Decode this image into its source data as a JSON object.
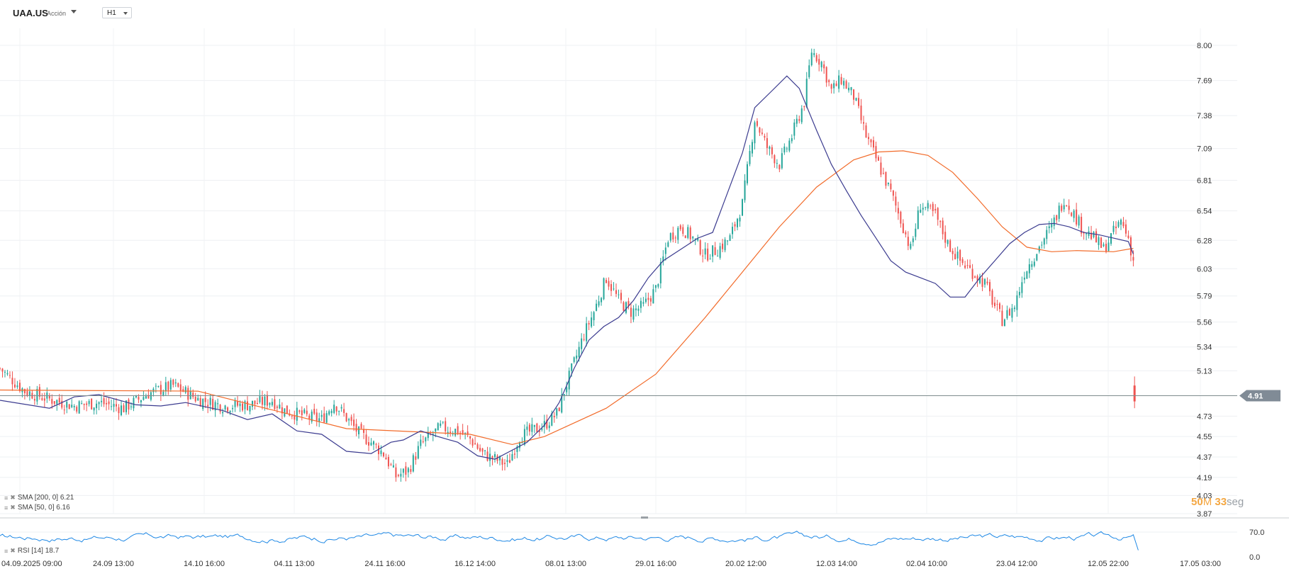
{
  "header": {
    "symbol": "UAA.US",
    "asset_type": "Acción",
    "timeframe": "H1"
  },
  "indicators": [
    {
      "label": "SMA [200, 0] 6.21",
      "color": "#f26b2a"
    },
    {
      "label": "SMA [50, 0] 6.16",
      "color": "#3b3b8f"
    }
  ],
  "rsi": {
    "label": "RSI [14] 18.7",
    "color": "#1e88e5",
    "ticks": [
      "70.0",
      "0.0"
    ]
  },
  "countdown": {
    "minutes": "50",
    "minutes_unit": "M",
    "seconds": "33",
    "seconds_unit": "seg"
  },
  "colors": {
    "up": "#26a69a",
    "down": "#ef5350",
    "sma200": "#f26b2a",
    "sma50": "#3b3b8f",
    "rsi": "#1e88e5",
    "price_line": "#90a4ae"
  },
  "chart_data": {
    "type": "candlestick",
    "symbol": "UAA.US",
    "timeframe": "H1",
    "ylim": [
      3.87,
      8.15
    ],
    "y_ticks": [
      "8.00",
      "7.69",
      "7.38",
      "7.09",
      "6.81",
      "6.54",
      "6.28",
      "6.03",
      "5.79",
      "5.56",
      "5.34",
      "5.13",
      "4.73",
      "4.55",
      "4.37",
      "4.19",
      "4.03",
      "3.87"
    ],
    "x_ticks": [
      "04.09.2025 09:00",
      "24.09 13:00",
      "14.10 16:00",
      "04.11 13:00",
      "24.11 16:00",
      "16.12 14:00",
      "08.01 13:00",
      "29.01 16:00",
      "20.02 12:00",
      "12.03 14:00",
      "02.04 10:00",
      "23.04 12:00",
      "12.05 22:00",
      "17.05 03:00"
    ],
    "current_price": "4.91",
    "close_path": [
      [
        0,
        5.15
      ],
      [
        10,
        4.95
      ],
      [
        20,
        4.88
      ],
      [
        30,
        4.82
      ],
      [
        40,
        4.85
      ],
      [
        50,
        4.8
      ],
      [
        60,
        4.93
      ],
      [
        70,
        5.0
      ],
      [
        80,
        4.88
      ],
      [
        90,
        4.82
      ],
      [
        100,
        4.83
      ],
      [
        110,
        4.87
      ],
      [
        115,
        4.78
      ],
      [
        125,
        4.72
      ],
      [
        130,
        4.7
      ],
      [
        135,
        4.85
      ],
      [
        145,
        4.58
      ],
      [
        150,
        4.5
      ],
      [
        155,
        4.4
      ],
      [
        160,
        4.2
      ],
      [
        165,
        4.25
      ],
      [
        170,
        4.48
      ],
      [
        178,
        4.63
      ],
      [
        185,
        4.6
      ],
      [
        190,
        4.53
      ],
      [
        195,
        4.4
      ],
      [
        200,
        4.35
      ],
      [
        205,
        4.3
      ],
      [
        210,
        4.55
      ],
      [
        215,
        4.6
      ],
      [
        220,
        4.65
      ],
      [
        225,
        4.75
      ],
      [
        228,
        4.95
      ],
      [
        232,
        5.2
      ],
      [
        236,
        5.45
      ],
      [
        240,
        5.65
      ],
      [
        245,
        5.95
      ],
      [
        250,
        5.75
      ],
      [
        255,
        5.65
      ],
      [
        260,
        5.7
      ],
      [
        265,
        5.85
      ],
      [
        270,
        6.3
      ],
      [
        275,
        6.4
      ],
      [
        280,
        6.3
      ],
      [
        285,
        6.15
      ],
      [
        290,
        6.2
      ],
      [
        295,
        6.3
      ],
      [
        300,
        6.6
      ],
      [
        305,
        7.35
      ],
      [
        310,
        7.1
      ],
      [
        315,
        6.95
      ],
      [
        320,
        7.2
      ],
      [
        325,
        7.5
      ],
      [
        328,
        7.95
      ],
      [
        332,
        7.85
      ],
      [
        336,
        7.6
      ],
      [
        340,
        7.7
      ],
      [
        345,
        7.55
      ],
      [
        350,
        7.2
      ],
      [
        355,
        6.95
      ],
      [
        360,
        6.7
      ],
      [
        365,
        6.4
      ],
      [
        368,
        6.2
      ],
      [
        372,
        6.6
      ],
      [
        378,
        6.5
      ],
      [
        383,
        6.25
      ],
      [
        388,
        6.1
      ],
      [
        393,
        6.0
      ],
      [
        398,
        5.9
      ],
      [
        402,
        5.7
      ],
      [
        405,
        5.58
      ],
      [
        410,
        5.7
      ],
      [
        414,
        6.0
      ],
      [
        418,
        6.15
      ],
      [
        422,
        6.3
      ],
      [
        425,
        6.4
      ],
      [
        430,
        6.65
      ],
      [
        433,
        6.55
      ],
      [
        437,
        6.4
      ],
      [
        442,
        6.3
      ],
      [
        446,
        6.2
      ],
      [
        450,
        6.35
      ],
      [
        453,
        6.45
      ],
      [
        456,
        6.3
      ],
      [
        458,
        6.1
      ],
      [
        458.5,
        4.91
      ]
    ],
    "series": [
      {
        "name": "SMA [200, 0]",
        "last": 6.21,
        "path": [
          [
            0,
            4.96
          ],
          [
            80,
            4.95
          ],
          [
            140,
            4.62
          ],
          [
            190,
            4.57
          ],
          [
            207,
            4.48
          ],
          [
            220,
            4.55
          ],
          [
            245,
            4.8
          ],
          [
            265,
            5.1
          ],
          [
            285,
            5.6
          ],
          [
            300,
            6.0
          ],
          [
            315,
            6.4
          ],
          [
            330,
            6.75
          ],
          [
            345,
            6.99
          ],
          [
            355,
            7.06
          ],
          [
            365,
            7.07
          ],
          [
            375,
            7.03
          ],
          [
            385,
            6.88
          ],
          [
            395,
            6.65
          ],
          [
            405,
            6.4
          ],
          [
            415,
            6.22
          ],
          [
            425,
            6.18
          ],
          [
            435,
            6.19
          ],
          [
            450,
            6.18
          ],
          [
            458,
            6.21
          ]
        ]
      },
      {
        "name": "SMA [50, 0]",
        "last": 6.16,
        "path": [
          [
            0,
            4.87
          ],
          [
            20,
            4.8
          ],
          [
            30,
            4.9
          ],
          [
            40,
            4.92
          ],
          [
            55,
            4.83
          ],
          [
            65,
            4.82
          ],
          [
            75,
            4.85
          ],
          [
            90,
            4.78
          ],
          [
            100,
            4.7
          ],
          [
            110,
            4.75
          ],
          [
            120,
            4.6
          ],
          [
            130,
            4.57
          ],
          [
            140,
            4.42
          ],
          [
            150,
            4.4
          ],
          [
            158,
            4.5
          ],
          [
            163,
            4.52
          ],
          [
            170,
            4.6
          ],
          [
            177,
            4.55
          ],
          [
            185,
            4.5
          ],
          [
            193,
            4.38
          ],
          [
            200,
            4.35
          ],
          [
            207,
            4.43
          ],
          [
            213,
            4.5
          ],
          [
            220,
            4.65
          ],
          [
            226,
            4.85
          ],
          [
            232,
            5.15
          ],
          [
            238,
            5.4
          ],
          [
            244,
            5.52
          ],
          [
            250,
            5.6
          ],
          [
            256,
            5.75
          ],
          [
            262,
            5.95
          ],
          [
            268,
            6.1
          ],
          [
            275,
            6.2
          ],
          [
            282,
            6.3
          ],
          [
            288,
            6.35
          ],
          [
            294,
            6.7
          ],
          [
            300,
            7.05
          ],
          [
            305,
            7.45
          ],
          [
            312,
            7.6
          ],
          [
            318,
            7.73
          ],
          [
            323,
            7.62
          ],
          [
            330,
            7.25
          ],
          [
            336,
            6.95
          ],
          [
            342,
            6.72
          ],
          [
            348,
            6.5
          ],
          [
            354,
            6.3
          ],
          [
            360,
            6.1
          ],
          [
            366,
            6.0
          ],
          [
            372,
            5.95
          ],
          [
            378,
            5.9
          ],
          [
            384,
            5.78
          ],
          [
            390,
            5.78
          ],
          [
            396,
            5.95
          ],
          [
            402,
            6.1
          ],
          [
            408,
            6.25
          ],
          [
            414,
            6.35
          ],
          [
            420,
            6.42
          ],
          [
            426,
            6.43
          ],
          [
            432,
            6.4
          ],
          [
            438,
            6.35
          ],
          [
            444,
            6.33
          ],
          [
            450,
            6.3
          ],
          [
            456,
            6.27
          ],
          [
            458,
            6.16
          ]
        ]
      }
    ],
    "rsi_series": {
      "name": "RSI [14]",
      "last": 18.7,
      "ylim": [
        0,
        100
      ],
      "ticks": [
        70.0,
        0.0
      ]
    }
  }
}
